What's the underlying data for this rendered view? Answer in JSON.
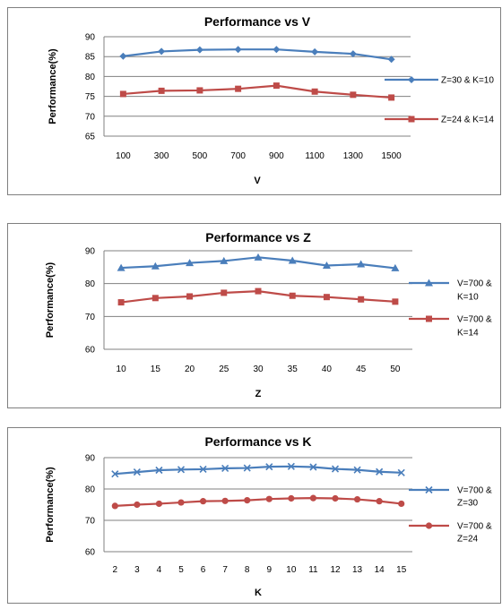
{
  "chart_data": [
    {
      "type": "line",
      "title": "Performance vs V",
      "xlabel": "V",
      "ylabel": "Performance(%)",
      "categories": [
        "100",
        "300",
        "500",
        "700",
        "900",
        "1100",
        "1300",
        "1500"
      ],
      "ylim": [
        65,
        90
      ],
      "yticks": [
        "65",
        "70",
        "75",
        "80",
        "85",
        "90"
      ],
      "grid": true,
      "legend": "right",
      "series": [
        {
          "name": "Z=30 & K=10",
          "color": "#4a7ebb",
          "marker": "diamond",
          "values": [
            85.1,
            86.3,
            86.7,
            86.8,
            86.8,
            86.2,
            85.7,
            84.3
          ]
        },
        {
          "name": "Z=24 & K=14",
          "color": "#be4b48",
          "marker": "square",
          "values": [
            75.6,
            76.4,
            76.5,
            76.9,
            77.7,
            76.2,
            75.4,
            74.7
          ]
        }
      ]
    },
    {
      "type": "line",
      "title": "Performance vs Z",
      "xlabel": "Z",
      "ylabel": "Performance(%)",
      "categories": [
        "10",
        "15",
        "20",
        "25",
        "30",
        "35",
        "40",
        "45",
        "50"
      ],
      "ylim": [
        60,
        90
      ],
      "yticks": [
        "60",
        "70",
        "80",
        "90"
      ],
      "grid": true,
      "legend": "right",
      "series": [
        {
          "name": "V=700 & K=10",
          "color": "#4a7ebb",
          "marker": "triangle",
          "values": [
            84.8,
            85.3,
            86.3,
            86.9,
            88.0,
            87.0,
            85.5,
            85.9,
            84.7
          ]
        },
        {
          "name": "V=700 & K=14",
          "color": "#be4b48",
          "marker": "square",
          "values": [
            74.3,
            75.6,
            76.1,
            77.2,
            77.7,
            76.3,
            75.9,
            75.2,
            74.5
          ]
        }
      ]
    },
    {
      "type": "line",
      "title": "Performance vs K",
      "xlabel": "K",
      "ylabel": "Performance(%)",
      "categories": [
        "2",
        "3",
        "4",
        "5",
        "6",
        "7",
        "8",
        "9",
        "10",
        "11",
        "12",
        "13",
        "14",
        "15"
      ],
      "ylim": [
        60,
        90
      ],
      "yticks": [
        "60",
        "70",
        "80",
        "90"
      ],
      "grid": true,
      "legend": "right",
      "series": [
        {
          "name": "V=700 & Z=30",
          "color": "#4a7ebb",
          "marker": "x",
          "values": [
            84.8,
            85.4,
            86.0,
            86.2,
            86.3,
            86.6,
            86.7,
            87.1,
            87.2,
            87.0,
            86.4,
            86.1,
            85.5,
            85.2
          ]
        },
        {
          "name": "V=700 & Z=24",
          "color": "#be4b48",
          "marker": "circle",
          "values": [
            74.6,
            75.0,
            75.3,
            75.7,
            76.1,
            76.2,
            76.4,
            76.8,
            77.0,
            77.1,
            77.0,
            76.7,
            76.1,
            75.3
          ]
        }
      ]
    }
  ]
}
